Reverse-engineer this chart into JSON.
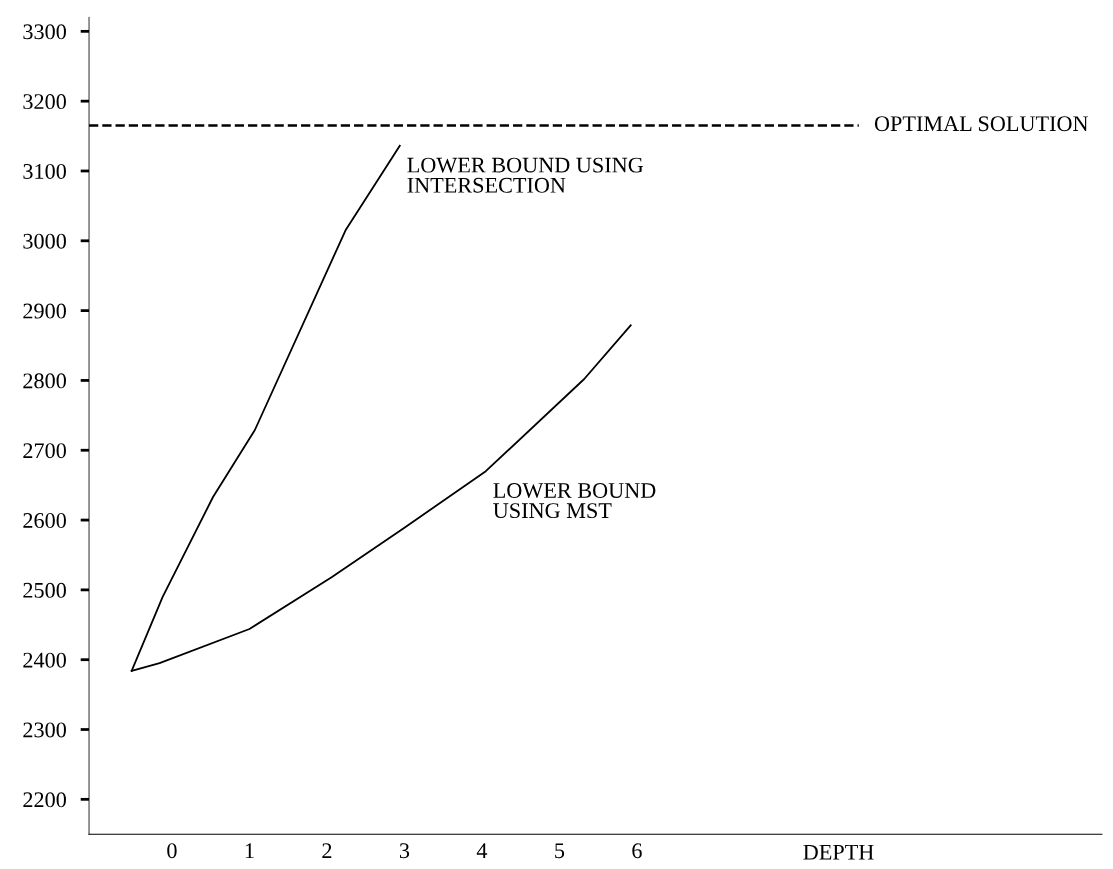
{
  "chart_data": {
    "type": "line",
    "xlabel": "DEPTH",
    "x": [
      -0.52,
      -0.12,
      0.53,
      1.07,
      2.24,
      2.94
    ],
    "series": [
      {
        "color": "#000000",
        "values": [
          2384,
          2490,
          2633,
          2729,
          3015,
          3136
        ]
      },
      {
        "color": "#000000",
        "x": [
          -0.52,
          -0.16,
          1.0,
          2.06,
          3.0,
          4.05,
          5.32,
          5.92
        ],
        "values": [
          2384,
          2395,
          2444,
          2518,
          2589,
          2670,
          2802,
          2879
        ]
      }
    ],
    "xlim": [
      -1.07,
      12.0
    ],
    "xticks": [
      0,
      1,
      2,
      3,
      4,
      5,
      6
    ],
    "ylim": [
      2150,
      3320
    ],
    "yticks": [
      2200,
      2300,
      2400,
      2500,
      2600,
      2700,
      2800,
      2900,
      3000,
      3100,
      3200,
      3300
    ],
    "ref_lines": [
      {
        "axis": "y",
        "value": 3165,
        "label": "OPTIMAL SOLUTION",
        "line_style": "dashed",
        "color": "#000000"
      }
    ],
    "annotations": [
      {
        "text": "LOWER BOUND USING\nINTERSECTION",
        "x": 2.94,
        "y": 3136
      },
      {
        "text": "LOWER BOUND\nUSING MST",
        "x": 4.05,
        "y": 2670
      }
    ],
    "line_style": "solid",
    "marker": "none",
    "grid": false,
    "legend": false
  }
}
